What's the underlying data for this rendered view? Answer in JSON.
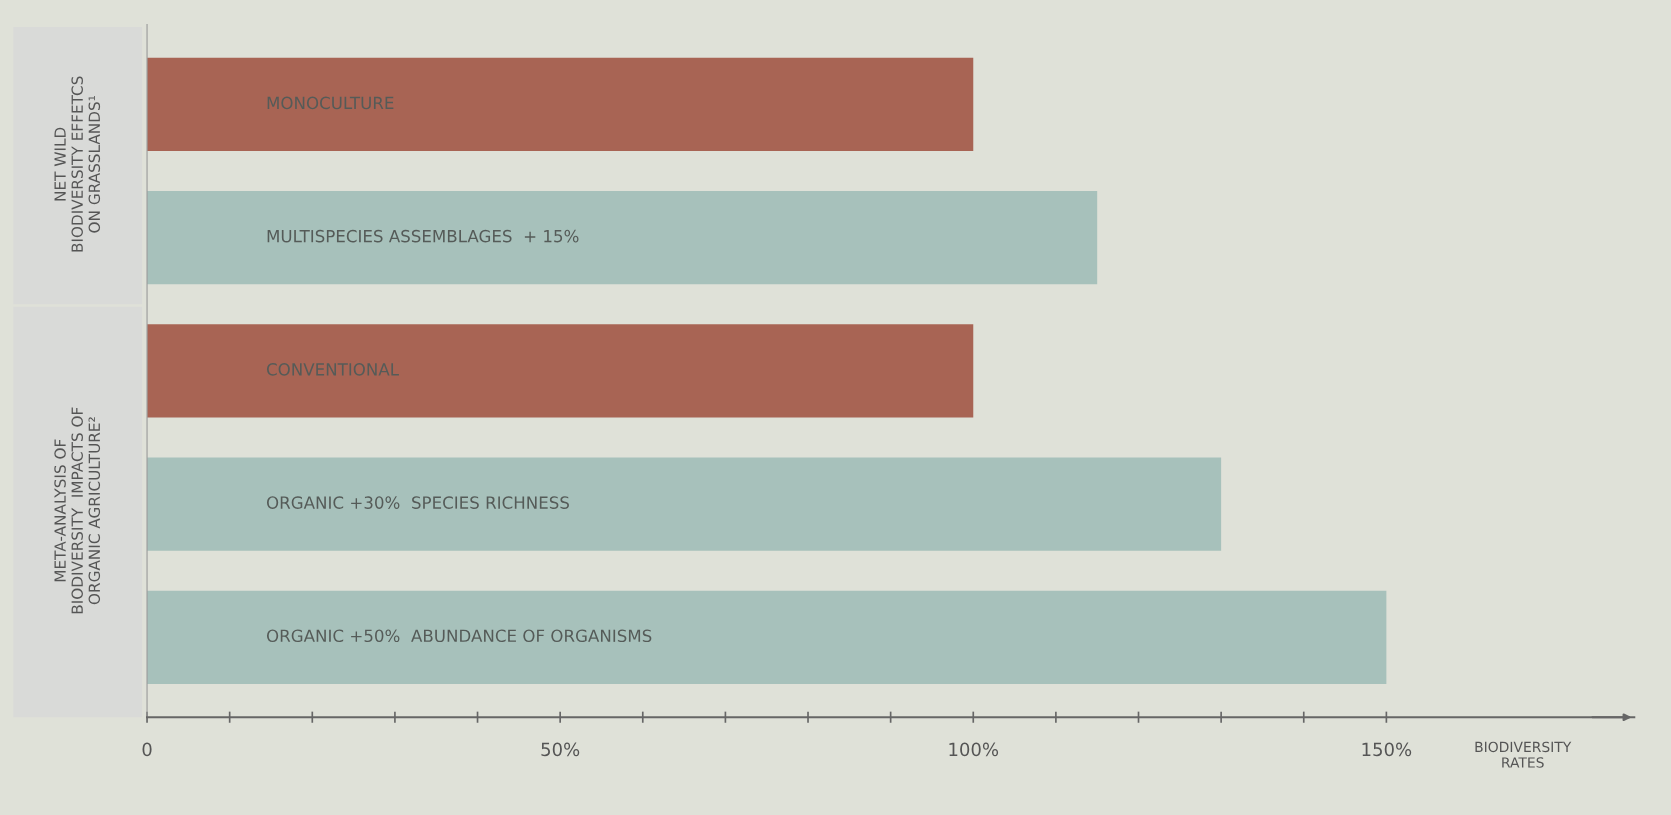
{
  "chart_data": {
    "type": "bar",
    "orientation": "horizontal",
    "categories": [
      "MONOCULTURE",
      "MULTISPECIES ASSEMBLAGES  + 15%",
      "CONVENTIONAL",
      "ORGANIC +30%  SPECIES RICHNESS",
      "ORGANIC +50%  ABUNDANCE OF ORGANISMS"
    ],
    "values": [
      100,
      115,
      100,
      130,
      150
    ],
    "colors": [
      "#a86454",
      "#a7c1bb",
      "#a86454",
      "#a7c1bb",
      "#a7c1bb"
    ],
    "xlim": [
      0,
      180
    ],
    "xticks": [
      0,
      {
        "value": 10,
        "label": null
      },
      {
        "value": 20,
        "label": null
      },
      {
        "value": 30,
        "label": null
      },
      {
        "value": 40,
        "label": null
      },
      {
        "value": 50,
        "label": "50%"
      },
      {
        "value": 60,
        "label": null
      },
      {
        "value": 70,
        "label": null
      },
      {
        "value": 80,
        "label": null
      },
      {
        "value": 90,
        "label": null
      },
      {
        "value": 100,
        "label": "100%"
      },
      {
        "value": 110,
        "label": null
      },
      {
        "value": 120,
        "label": null
      },
      {
        "value": 130,
        "label": null
      },
      {
        "value": 140,
        "label": null
      },
      {
        "value": 150,
        "label": "150%"
      }
    ],
    "xlabel": "BIODIVERSITY\nRATES",
    "annotations": [
      "NET WILD\nBIODIVERSITY EFFETCS\nON GRASSLANDS¹",
      "META-ANALYSIS OF\nBIODIVERSITY  IMPACTS OF\nORGANIC AGRICULTURE²"
    ],
    "tick_labels": "x",
    "grid": false,
    "legend": false
  }
}
